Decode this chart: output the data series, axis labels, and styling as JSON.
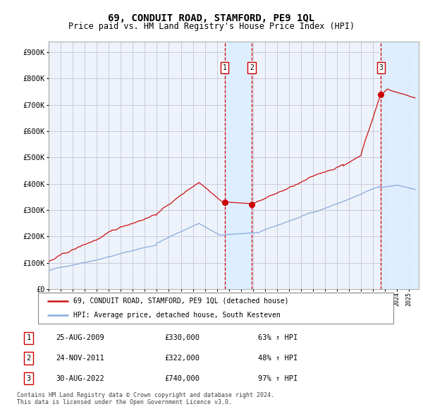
{
  "title": "69, CONDUIT ROAD, STAMFORD, PE9 1QL",
  "subtitle": "Price paid vs. HM Land Registry's House Price Index (HPI)",
  "ylabel_ticks": [
    "£0",
    "£100K",
    "£200K",
    "£300K",
    "£400K",
    "£500K",
    "£600K",
    "£700K",
    "£800K",
    "£900K"
  ],
  "ytick_values": [
    0,
    100000,
    200000,
    300000,
    400000,
    500000,
    600000,
    700000,
    800000,
    900000
  ],
  "ylim": [
    0,
    940000
  ],
  "xlim_start": 1995.0,
  "xlim_end": 2025.8,
  "sale_dates": [
    2009.646,
    2011.897,
    2022.66
  ],
  "sale_prices": [
    330000,
    322000,
    740000
  ],
  "sale_labels": [
    "1",
    "2",
    "3"
  ],
  "vline_color": "#cc0000",
  "marker_color": "#cc0000",
  "shade_color": "#ddeeff",
  "legend_line1": "69, CONDUIT ROAD, STAMFORD, PE9 1QL (detached house)",
  "legend_line2": "HPI: Average price, detached house, South Kesteven",
  "line1_color": "#cc1111",
  "line2_color": "#88aadd",
  "table_rows": [
    [
      "1",
      "25-AUG-2009",
      "£330,000",
      "63% ↑ HPI"
    ],
    [
      "2",
      "24-NOV-2011",
      "£322,000",
      "48% ↑ HPI"
    ],
    [
      "3",
      "30-AUG-2022",
      "£740,000",
      "97% ↑ HPI"
    ]
  ],
  "footer": "Contains HM Land Registry data © Crown copyright and database right 2024.\nThis data is licensed under the Open Government Licence v3.0.",
  "background_color": "#eef3fb",
  "grid_color": "#bbbbcc",
  "title_fontsize": 10,
  "subtitle_fontsize": 8.5,
  "axis_fontsize": 7.5
}
